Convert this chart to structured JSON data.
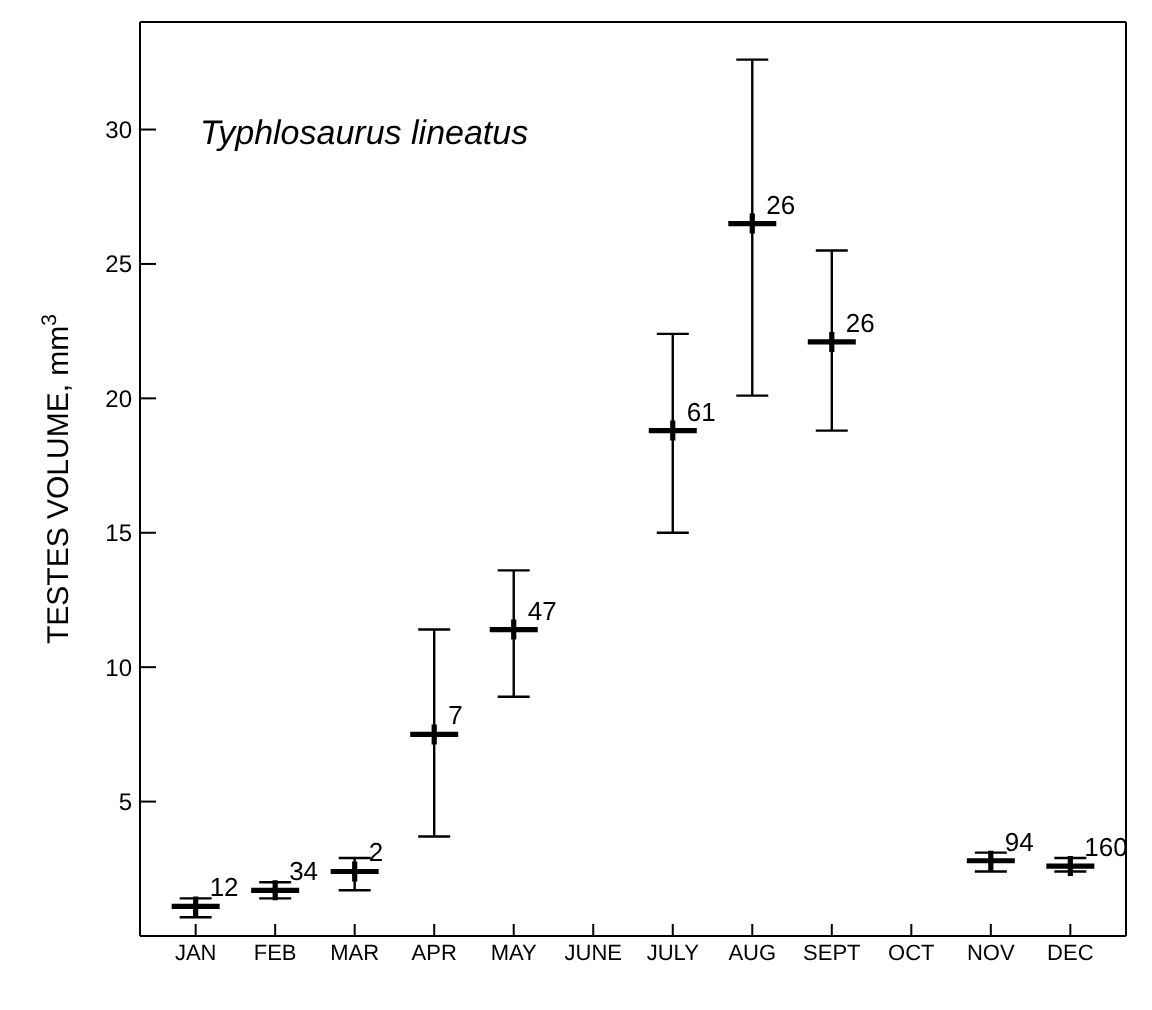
{
  "chart_data": {
    "type": "scatter",
    "title": "Typhlosaurus lineatus",
    "ylabel": "TESTES VOLUME, mm$^{3}$",
    "categories": [
      "JAN",
      "FEB",
      "MAR",
      "APR",
      "MAY",
      "JUNE",
      "JULY",
      "AUG",
      "SEPT",
      "OCT",
      "NOV",
      "DEC"
    ],
    "series": [
      {
        "color": "#000000",
        "values": [
          1.1,
          1.7,
          2.4,
          7.5,
          11.4,
          null,
          18.8,
          26.5,
          22.1,
          null,
          2.8,
          2.6
        ],
        "errors": [
          [
            0.7,
            1.4
          ],
          [
            1.4,
            2.0
          ],
          [
            1.7,
            2.9
          ],
          [
            3.7,
            11.4
          ],
          [
            8.9,
            13.6
          ],
          null,
          [
            15.0,
            22.4
          ],
          [
            20.1,
            32.6
          ],
          [
            18.8,
            25.5
          ],
          null,
          [
            2.4,
            3.1
          ],
          [
            2.4,
            2.9
          ]
        ]
      }
    ],
    "annotations": [
      {
        "text": "12",
        "x": "JAN",
        "y": 1.1
      },
      {
        "text": "34",
        "x": "FEB",
        "y": 1.7
      },
      {
        "text": "2",
        "x": "MAR",
        "y": 2.4
      },
      {
        "text": "7",
        "x": "APR",
        "y": 7.5
      },
      {
        "text": "47",
        "x": "MAY",
        "y": 11.4
      },
      {
        "text": "61",
        "x": "JULY",
        "y": 18.8
      },
      {
        "text": "26",
        "x": "AUG",
        "y": 26.5
      },
      {
        "text": "26",
        "x": "SEPT",
        "y": 22.1
      },
      {
        "text": "94",
        "x": "NOV",
        "y": 2.8
      },
      {
        "text": "160",
        "x": "DEC",
        "y": 2.6
      }
    ],
    "ylim": [
      0,
      34
    ],
    "yticks": [
      5,
      10,
      15,
      20,
      25,
      30
    ],
    "marker": "cross",
    "legend": false
  }
}
